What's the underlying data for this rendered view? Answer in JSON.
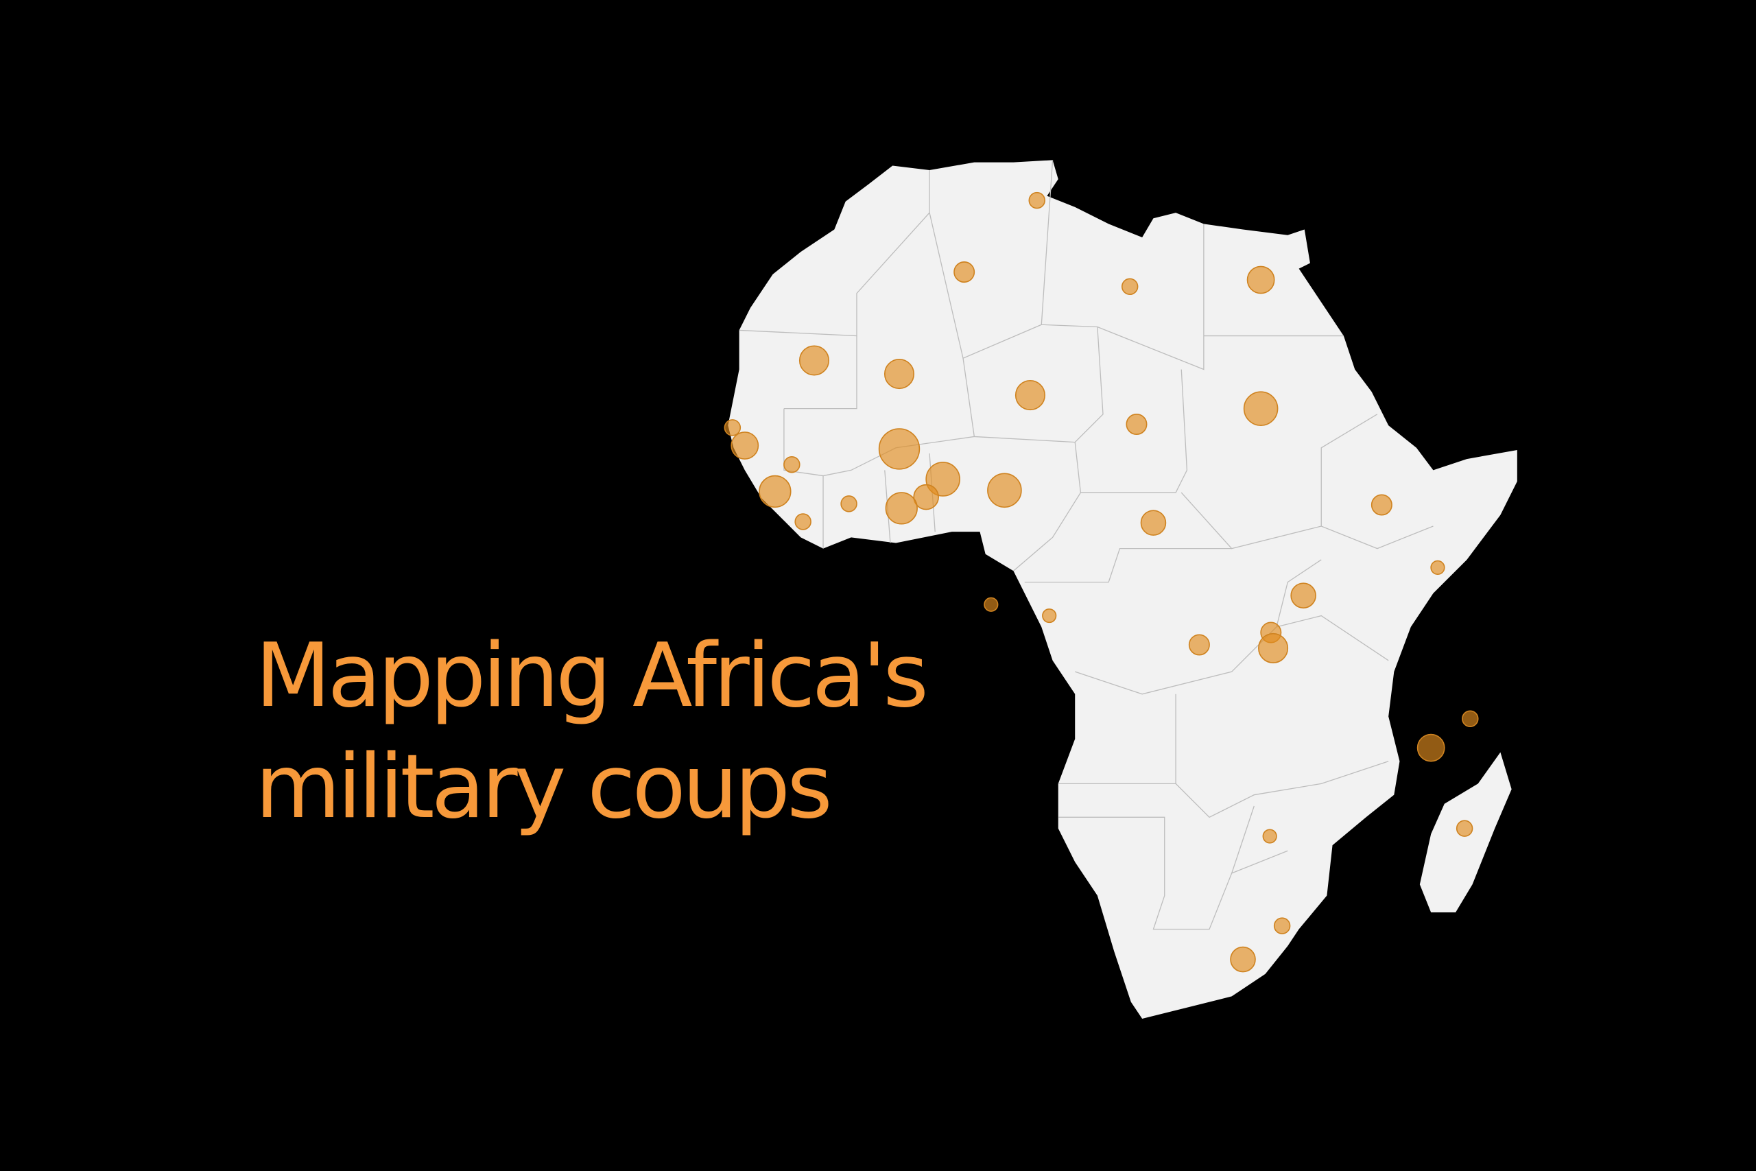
{
  "title": {
    "line1": "Mapping Africa's",
    "line2": "military coups"
  },
  "colors": {
    "background": "#000000",
    "land": "#f2f2f2",
    "borders": "#bdbdbd",
    "title": "#f7993a",
    "bubble_fill": "#e08c1e",
    "bubble_stroke": "#cf8320"
  }
}
